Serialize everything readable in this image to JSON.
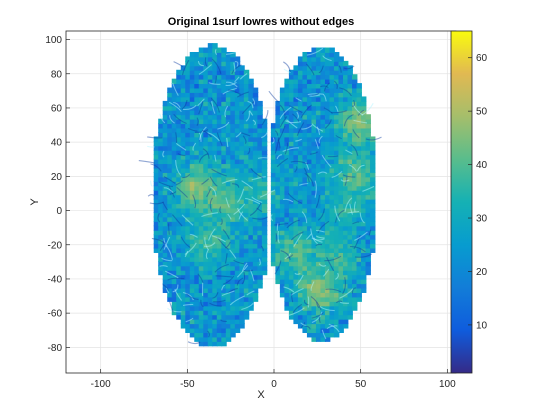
{
  "chart_data": {
    "type": "heatmap",
    "title": "Original 1surf lowres without edges",
    "xlabel": "X",
    "ylabel": "Y",
    "xlim": [
      -120,
      105
    ],
    "ylim": [
      -95,
      105
    ],
    "grid": true,
    "xticks": [
      -100,
      -50,
      0,
      50,
      100
    ],
    "yticks": [
      -80,
      -60,
      -40,
      -20,
      0,
      20,
      40,
      60,
      80,
      100
    ],
    "colorbar": {
      "colormap": "parula",
      "clim": [
        1,
        65
      ],
      "ticks": [
        10,
        20,
        30,
        40,
        50,
        60
      ],
      "placement": "right"
    },
    "surface": {
      "description_free": true,
      "x_extent": [
        -72,
        58
      ],
      "y_extent": [
        -82,
        97
      ],
      "base_value_range": [
        14,
        32
      ],
      "hotspots": [
        {
          "x": -45,
          "y": 12,
          "value": 48
        },
        {
          "x": -30,
          "y": 4,
          "value": 42
        },
        {
          "x": -40,
          "y": -20,
          "value": 38
        },
        {
          "x": 10,
          "y": -25,
          "value": 40
        },
        {
          "x": 25,
          "y": -48,
          "value": 48
        },
        {
          "x": 45,
          "y": 20,
          "value": 42
        },
        {
          "x": 48,
          "y": 50,
          "value": 46
        },
        {
          "x": 35,
          "y": -30,
          "value": 38
        },
        {
          "x": 40,
          "y": 0,
          "value": 36
        },
        {
          "x": -10,
          "y": 10,
          "value": 35
        }
      ]
    }
  }
}
